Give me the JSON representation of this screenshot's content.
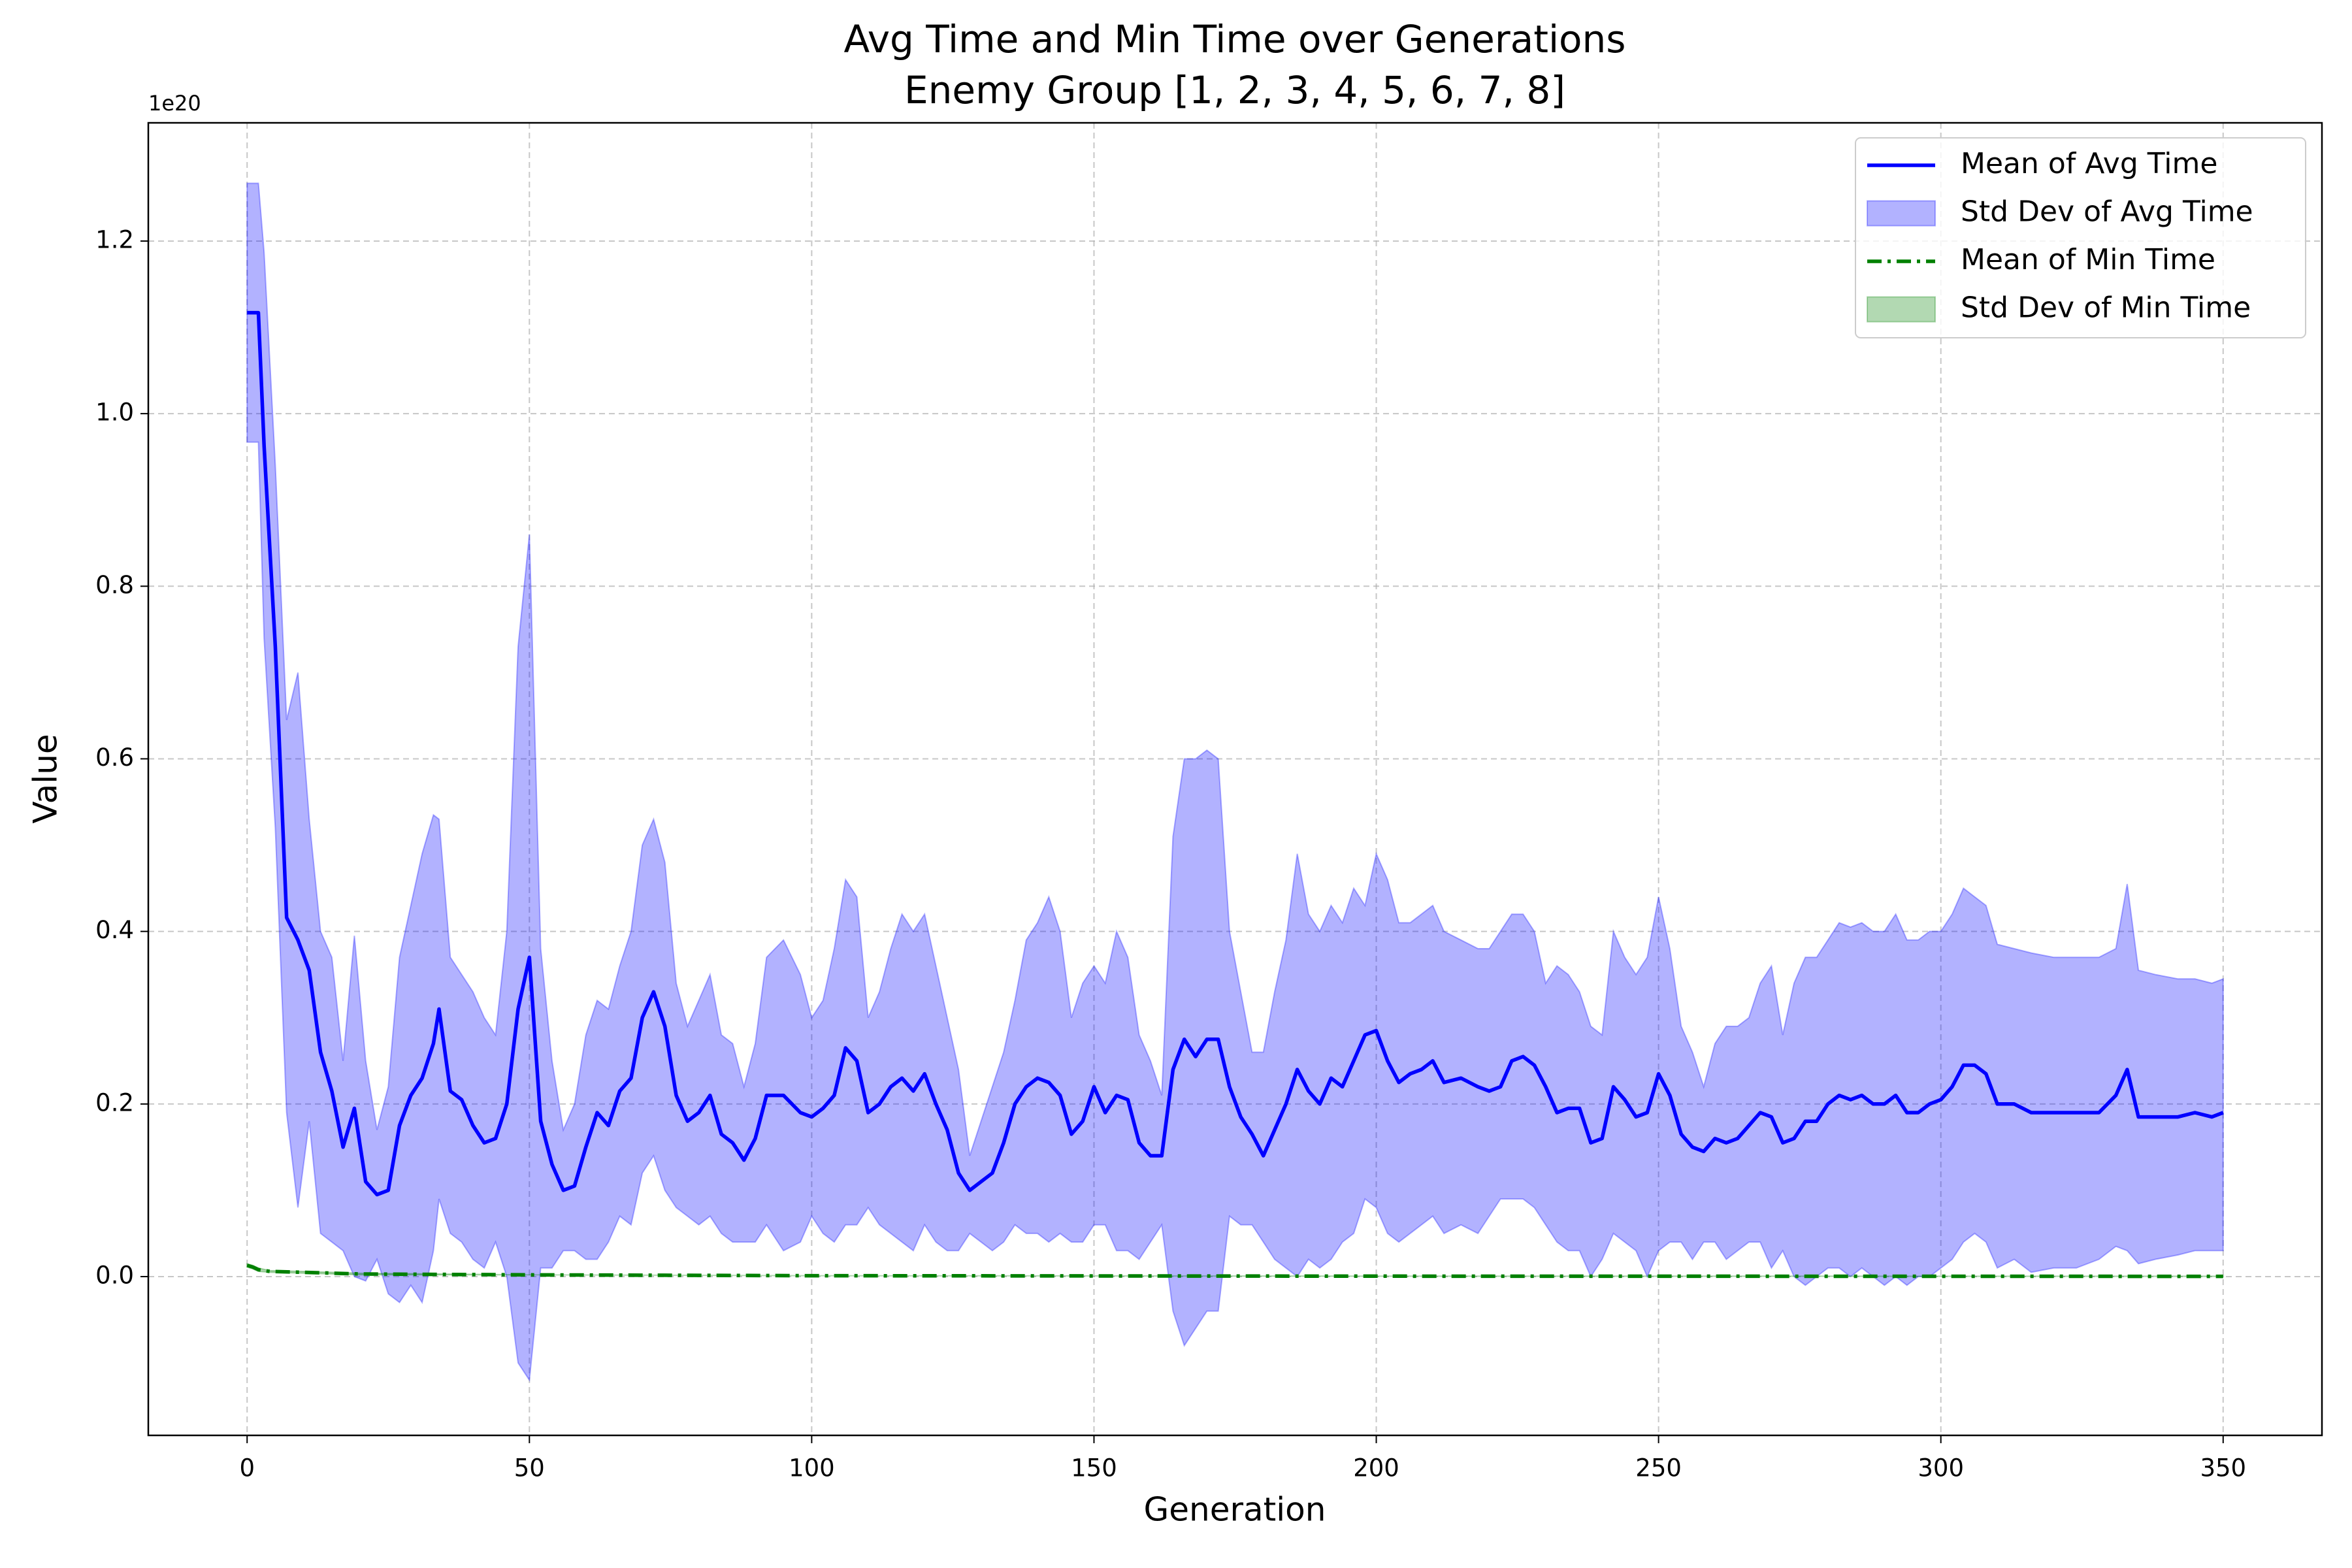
{
  "chart_data": {
    "type": "line",
    "title": "Avg Time and Min Time over Generations",
    "subtitle": "Enemy Group [1, 2, 3, 4, 5, 6, 7, 8]",
    "x_label": "Generation",
    "y_label": "Value",
    "y_offset_label": "1e20",
    "xlim": [
      -17.5,
      367.5
    ],
    "ylim": [
      -0.184,
      1.337
    ],
    "xticks": [
      0,
      50,
      100,
      150,
      200,
      250,
      300,
      350
    ],
    "yticks": [
      {
        "value": 0,
        "label": "0.0"
      },
      0.2,
      0.4,
      0.6,
      0.8,
      {
        "value": 1,
        "label": "1.0"
      },
      1.2
    ],
    "grid": true,
    "legend": "upper right",
    "x": [
      0,
      2,
      3,
      5,
      7,
      9,
      11,
      13,
      15,
      17,
      19,
      21,
      23,
      25,
      27,
      29,
      31,
      33,
      34,
      36,
      38,
      40,
      42,
      44,
      46,
      48,
      50,
      52,
      54,
      56,
      58,
      60,
      62,
      64,
      66,
      68,
      70,
      72,
      74,
      76,
      78,
      80,
      82,
      84,
      86,
      88,
      90,
      92,
      95,
      98,
      100,
      102,
      104,
      106,
      108,
      110,
      112,
      114,
      116,
      118,
      120,
      122,
      124,
      126,
      128,
      130,
      132,
      134,
      136,
      138,
      140,
      142,
      144,
      146,
      148,
      150,
      152,
      154,
      156,
      158,
      160,
      162,
      164,
      166,
      168,
      170,
      172,
      174,
      176,
      178,
      180,
      182,
      184,
      186,
      188,
      190,
      192,
      194,
      196,
      198,
      200,
      202,
      204,
      206,
      208,
      210,
      212,
      215,
      218,
      220,
      222,
      224,
      226,
      228,
      230,
      232,
      234,
      236,
      238,
      240,
      242,
      244,
      246,
      248,
      250,
      252,
      254,
      256,
      258,
      260,
      262,
      264,
      266,
      268,
      270,
      272,
      274,
      276,
      278,
      280,
      282,
      284,
      286,
      288,
      290,
      292,
      294,
      296,
      298,
      300,
      302,
      304,
      306,
      308,
      310,
      313,
      316,
      320,
      324,
      328,
      331,
      333,
      335,
      338,
      342,
      345,
      348,
      350
    ],
    "series": [
      {
        "name": "Mean of Avg Time",
        "kind": "line",
        "color": "#0000ff",
        "linestyle": "solid",
        "values": [
          1.117,
          1.117,
          0.963,
          0.73,
          0.416,
          0.39,
          0.355,
          0.26,
          0.215,
          0.15,
          0.195,
          0.11,
          0.095,
          0.1,
          0.175,
          0.21,
          0.23,
          0.27,
          0.31,
          0.215,
          0.205,
          0.175,
          0.155,
          0.16,
          0.2,
          0.31,
          0.37,
          0.18,
          0.13,
          0.1,
          0.105,
          0.15,
          0.19,
          0.175,
          0.215,
          0.23,
          0.3,
          0.33,
          0.29,
          0.21,
          0.18,
          0.19,
          0.21,
          0.165,
          0.155,
          0.135,
          0.16,
          0.21,
          0.21,
          0.19,
          0.185,
          0.195,
          0.21,
          0.265,
          0.25,
          0.19,
          0.2,
          0.22,
          0.23,
          0.215,
          0.235,
          0.2,
          0.17,
          0.12,
          0.1,
          0.11,
          0.12,
          0.155,
          0.2,
          0.22,
          0.23,
          0.225,
          0.21,
          0.165,
          0.18,
          0.22,
          0.19,
          0.21,
          0.205,
          0.155,
          0.14,
          0.14,
          0.24,
          0.275,
          0.255,
          0.275,
          0.275,
          0.22,
          0.185,
          0.165,
          0.14,
          0.17,
          0.2,
          0.24,
          0.215,
          0.2,
          0.23,
          0.22,
          0.25,
          0.28,
          0.285,
          0.25,
          0.225,
          0.235,
          0.24,
          0.25,
          0.225,
          0.23,
          0.22,
          0.215,
          0.22,
          0.25,
          0.255,
          0.245,
          0.22,
          0.19,
          0.195,
          0.195,
          0.155,
          0.16,
          0.22,
          0.205,
          0.185,
          0.19,
          0.235,
          0.21,
          0.165,
          0.15,
          0.145,
          0.16,
          0.155,
          0.16,
          0.175,
          0.19,
          0.185,
          0.155,
          0.16,
          0.18,
          0.18,
          0.2,
          0.21,
          0.205,
          0.21,
          0.2,
          0.2,
          0.21,
          0.19,
          0.19,
          0.2,
          0.205,
          0.22,
          0.245,
          0.245,
          0.235,
          0.2,
          0.2,
          0.19,
          0.19,
          0.19,
          0.19,
          0.21,
          0.24,
          0.185,
          0.185,
          0.185,
          0.19,
          0.185,
          0.19
        ]
      },
      {
        "name": "Std Dev of Avg Time",
        "kind": "band",
        "color": "#0000ff",
        "alpha": 0.3,
        "upper": [
          1.267,
          1.267,
          1.187,
          0.94,
          0.645,
          0.7,
          0.53,
          0.4,
          0.37,
          0.25,
          0.395,
          0.25,
          0.17,
          0.22,
          0.37,
          0.43,
          0.49,
          0.535,
          0.53,
          0.37,
          0.35,
          0.33,
          0.3,
          0.28,
          0.4,
          0.73,
          0.86,
          0.38,
          0.25,
          0.17,
          0.2,
          0.28,
          0.32,
          0.31,
          0.36,
          0.4,
          0.5,
          0.53,
          0.48,
          0.34,
          0.29,
          0.32,
          0.35,
          0.28,
          0.27,
          0.22,
          0.27,
          0.37,
          0.39,
          0.35,
          0.3,
          0.32,
          0.38,
          0.46,
          0.44,
          0.3,
          0.33,
          0.38,
          0.42,
          0.4,
          0.42,
          0.36,
          0.3,
          0.24,
          0.14,
          0.18,
          0.22,
          0.26,
          0.32,
          0.39,
          0.41,
          0.44,
          0.4,
          0.3,
          0.34,
          0.36,
          0.34,
          0.4,
          0.37,
          0.28,
          0.25,
          0.21,
          0.51,
          0.6,
          0.6,
          0.61,
          0.6,
          0.4,
          0.33,
          0.26,
          0.26,
          0.33,
          0.39,
          0.49,
          0.42,
          0.4,
          0.43,
          0.41,
          0.45,
          0.43,
          0.49,
          0.46,
          0.41,
          0.41,
          0.42,
          0.43,
          0.4,
          0.39,
          0.38,
          0.38,
          0.4,
          0.42,
          0.42,
          0.4,
          0.34,
          0.36,
          0.35,
          0.33,
          0.29,
          0.28,
          0.4,
          0.37,
          0.35,
          0.37,
          0.44,
          0.38,
          0.29,
          0.26,
          0.22,
          0.27,
          0.29,
          0.29,
          0.3,
          0.34,
          0.36,
          0.28,
          0.34,
          0.37,
          0.37,
          0.39,
          0.41,
          0.405,
          0.41,
          0.4,
          0.4,
          0.42,
          0.39,
          0.39,
          0.4,
          0.4,
          0.42,
          0.45,
          0.44,
          0.43,
          0.385,
          0.38,
          0.375,
          0.37,
          0.37,
          0.37,
          0.38,
          0.455,
          0.355,
          0.35,
          0.345,
          0.345,
          0.34,
          0.345
        ],
        "lower": [
          0.967,
          0.967,
          0.74,
          0.52,
          0.19,
          0.08,
          0.18,
          0.05,
          0.04,
          0.03,
          0.0,
          -0.005,
          0.02,
          -0.02,
          -0.03,
          -0.01,
          -0.03,
          0.03,
          0.09,
          0.05,
          0.04,
          0.02,
          0.01,
          0.04,
          0.0,
          -0.1,
          -0.12,
          0.01,
          0.01,
          0.03,
          0.03,
          0.02,
          0.02,
          0.04,
          0.07,
          0.06,
          0.12,
          0.14,
          0.1,
          0.08,
          0.07,
          0.06,
          0.07,
          0.05,
          0.04,
          0.04,
          0.04,
          0.06,
          0.03,
          0.04,
          0.07,
          0.05,
          0.04,
          0.06,
          0.06,
          0.08,
          0.06,
          0.05,
          0.04,
          0.03,
          0.06,
          0.04,
          0.03,
          0.03,
          0.05,
          0.04,
          0.03,
          0.04,
          0.06,
          0.05,
          0.05,
          0.04,
          0.05,
          0.04,
          0.04,
          0.06,
          0.06,
          0.03,
          0.03,
          0.02,
          0.04,
          0.06,
          -0.04,
          -0.08,
          -0.06,
          -0.04,
          -0.04,
          0.07,
          0.06,
          0.06,
          0.04,
          0.02,
          0.01,
          0.0,
          0.02,
          0.01,
          0.02,
          0.04,
          0.05,
          0.09,
          0.08,
          0.05,
          0.04,
          0.05,
          0.06,
          0.07,
          0.05,
          0.06,
          0.05,
          0.07,
          0.09,
          0.09,
          0.09,
          0.08,
          0.06,
          0.04,
          0.03,
          0.03,
          0.0,
          0.02,
          0.05,
          0.04,
          0.03,
          0.0,
          0.03,
          0.04,
          0.04,
          0.02,
          0.04,
          0.04,
          0.02,
          0.03,
          0.04,
          0.04,
          0.01,
          0.03,
          0.0,
          -0.01,
          0.0,
          0.01,
          0.01,
          0.0,
          0.01,
          0.0,
          -0.01,
          0.0,
          -0.01,
          0.0,
          0.0,
          0.01,
          0.02,
          0.04,
          0.05,
          0.04,
          0.01,
          0.02,
          0.005,
          0.01,
          0.01,
          0.02,
          0.035,
          0.03,
          0.015,
          0.02,
          0.025,
          0.03,
          0.03,
          0.03
        ]
      },
      {
        "name": "Mean of Min Time",
        "kind": "line",
        "color": "#008000",
        "linestyle": "dashdot",
        "x": [
          0,
          1,
          2,
          4,
          10,
          20,
          50,
          100,
          200,
          350
        ],
        "values": [
          0.013,
          0.011,
          0.008,
          0.006,
          0.005,
          0.003,
          0.002,
          0.001,
          0.0005,
          0.0003
        ]
      },
      {
        "name": "Std Dev of Min Time",
        "kind": "band",
        "color": "#008000",
        "alpha": 0.3,
        "x": [
          0,
          1,
          2,
          4,
          10,
          20,
          50,
          100,
          200,
          350
        ],
        "upper": [
          0.015,
          0.013,
          0.01,
          0.007,
          0.006,
          0.004,
          0.002,
          0.001,
          0.0006,
          0.0004
        ],
        "lower": [
          0.011,
          0.009,
          0.006,
          0.005,
          0.004,
          0.002,
          0.002,
          0.001,
          0.0004,
          0.0002
        ]
      }
    ]
  }
}
